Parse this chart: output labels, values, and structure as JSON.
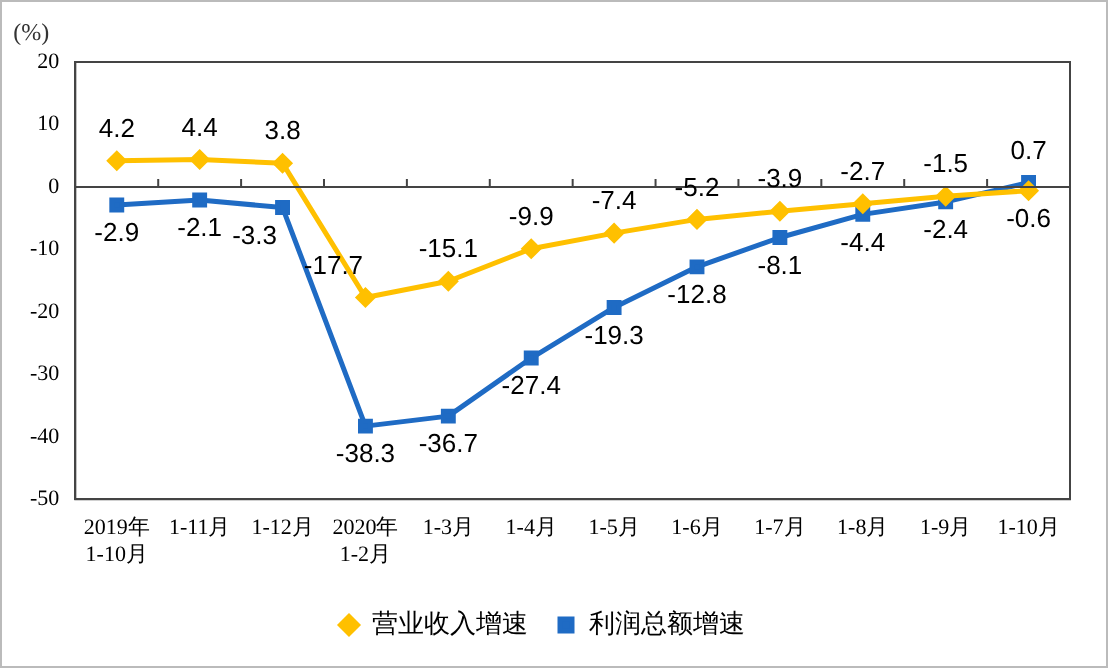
{
  "chart_data": {
    "type": "line",
    "ylabel": "(%)",
    "categories": [
      "2019年\n1-10月",
      "1-11月",
      "1-12月",
      "2020年\n1-2月",
      "1-3月",
      "1-4月",
      "1-5月",
      "1-6月",
      "1-7月",
      "1-8月",
      "1-9月",
      "1-10月"
    ],
    "series": [
      {
        "name": "营业收入增速",
        "color": "#ffc000",
        "marker": "diamond",
        "values": [
          4.2,
          4.4,
          3.8,
          -17.7,
          -15.1,
          -9.9,
          -7.4,
          -5.2,
          -3.9,
          -2.7,
          -1.5,
          -0.6
        ]
      },
      {
        "name": "利润总额增速",
        "color": "#1f6bc4",
        "marker": "square",
        "values": [
          -2.9,
          -2.1,
          -3.3,
          -38.3,
          -36.7,
          -27.4,
          -19.3,
          -12.8,
          -8.1,
          -4.4,
          -2.4,
          0.7
        ]
      }
    ],
    "ylim": [
      -50,
      20
    ],
    "yticks": [
      -50,
      -40,
      -30,
      -20,
      -10,
      0,
      10,
      20
    ],
    "grid": false,
    "ref_lines": [
      {
        "axis": "y",
        "value": 0
      }
    ],
    "legend": "bottom",
    "data_labels": true,
    "line_style": "solid"
  }
}
